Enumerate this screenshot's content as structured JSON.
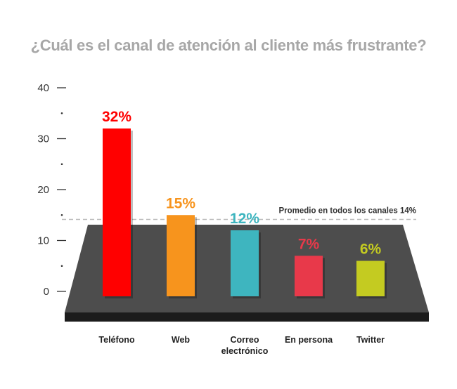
{
  "chart_data": {
    "type": "bar",
    "title": "¿Cuál es el canal de atención al cliente más frustrante?",
    "categories": [
      "Teléfono",
      "Web",
      "Correo electrónico",
      "En persona",
      "Twitter"
    ],
    "category_lines": [
      [
        "Teléfono"
      ],
      [
        "Web"
      ],
      [
        "Correo",
        "electrónico"
      ],
      [
        "En persona"
      ],
      [
        "Twitter"
      ]
    ],
    "values": [
      32,
      15,
      12,
      7,
      6
    ],
    "value_labels": [
      "32%",
      "15%",
      "12%",
      "7%",
      "6%"
    ],
    "colors": [
      "#ff0000",
      "#f7941d",
      "#3eb5bf",
      "#e8394a",
      "#c4cb21"
    ],
    "ylim": [
      0,
      40
    ],
    "yticks": [
      0,
      10,
      20,
      30,
      40
    ],
    "yticks_minor": [
      5,
      15,
      25,
      35
    ],
    "average": {
      "value": 14,
      "label": "Promedio en todos los canales 14%",
      "color": "#bbbbbb"
    },
    "floor_color": "#4d4d4d",
    "grid": false,
    "xlabel": "",
    "ylabel": ""
  }
}
